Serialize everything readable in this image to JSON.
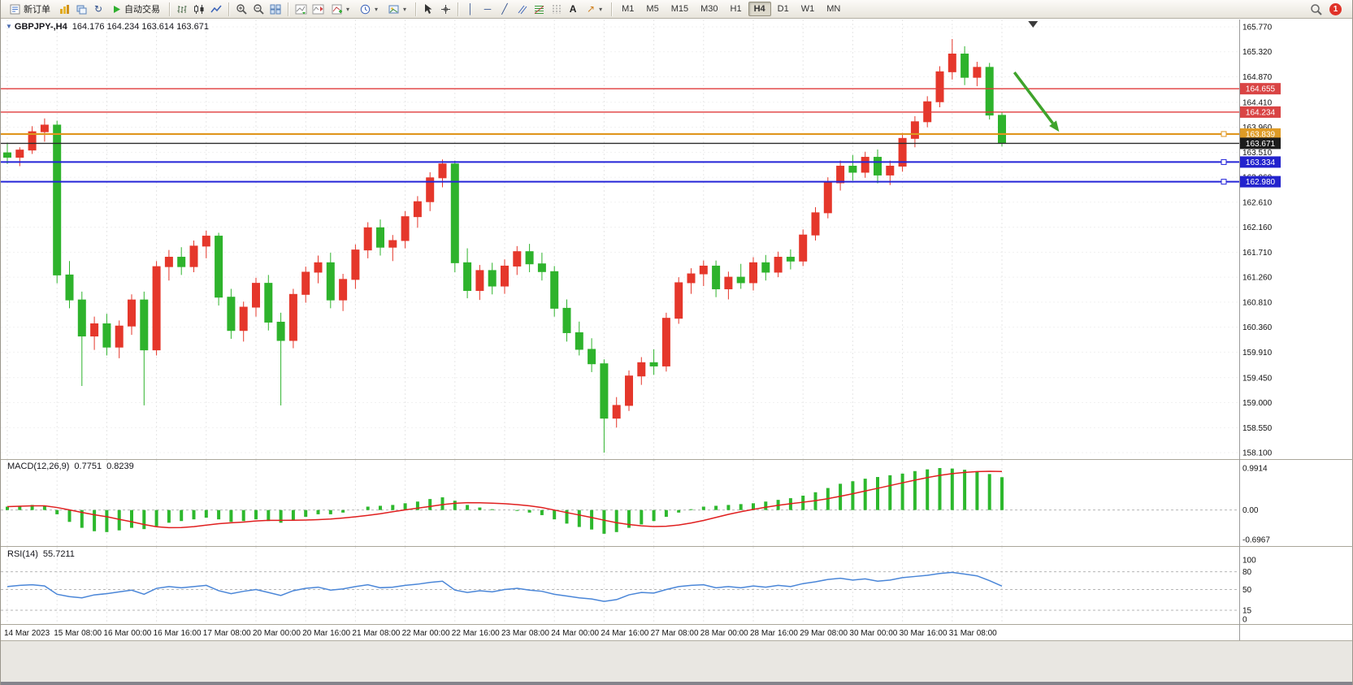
{
  "toolbar": {
    "new_order_label": "新订单",
    "autotrading_label": "自动交易",
    "timeframes": [
      "M1",
      "M5",
      "M15",
      "M30",
      "H1",
      "H4",
      "D1",
      "W1",
      "MN"
    ],
    "active_timeframe": "H4",
    "notification_count": "1",
    "text_tool_label": "A",
    "trendline_glyph": "╱",
    "vline_glyph": "│",
    "hline_glyph": "─",
    "arrows_glyph": "↗",
    "refresh_glyph": "↻"
  },
  "chart_header": {
    "symbol_label": "GBPJPY-,H4",
    "ohlc_text": "164.176 164.234 163.614 163.671"
  },
  "panels": {
    "macd_title": "MACD(12,26,9)",
    "macd_main": "0.7751",
    "macd_signal": "0.8239",
    "rsi_title": "RSI(14)",
    "rsi_value": "55.7211"
  },
  "chart_data": {
    "type": "candlestick",
    "symbol": "GBPJPY-",
    "timeframe": "H4",
    "current_candle": {
      "open": 164.176,
      "high": 164.234,
      "low": 163.614,
      "close": 163.671
    },
    "up_color": "#e5372b",
    "down_color": "#2eb32c",
    "grid_color": "#e6e6e6",
    "price_axis": {
      "min": 158.1,
      "max": 165.77,
      "tick_labels": [
        "165.770",
        "165.320",
        "164.870",
        "164.410",
        "163.960",
        "163.510",
        "163.060",
        "162.610",
        "162.160",
        "161.710",
        "161.260",
        "160.810",
        "160.360",
        "159.910",
        "159.450",
        "159.000",
        "158.550",
        "158.100"
      ]
    },
    "h_lines": [
      {
        "price": 164.655,
        "label": "164.655",
        "color": "#e03b3b",
        "width": 1.4,
        "badge": "#d94444",
        "handle": false
      },
      {
        "price": 164.234,
        "label": "164.234",
        "color": "#e03b3b",
        "width": 1.4,
        "badge": "#d94444",
        "handle": false
      },
      {
        "price": 163.839,
        "label": "163.839",
        "color": "#e0961e",
        "width": 2.2,
        "badge": "#df9b26",
        "handle": true
      },
      {
        "price": 163.671,
        "label": "163.671",
        "color": "#2b2b2b",
        "width": 1.4,
        "badge": "#1c1c1c",
        "handle": false
      },
      {
        "price": 163.334,
        "label": "163.334",
        "color": "#2424d8",
        "width": 2,
        "badge": "#2323cd",
        "handle": true
      },
      {
        "price": 162.98,
        "label": "162.980",
        "color": "#2424d8",
        "width": 2,
        "badge": "#2323cd",
        "handle": true
      }
    ],
    "candles": [
      [
        163.5,
        163.68,
        163.3,
        163.42
      ],
      [
        163.42,
        163.6,
        163.26,
        163.55
      ],
      [
        163.55,
        163.98,
        163.48,
        163.88
      ],
      [
        163.88,
        164.12,
        163.7,
        164.0
      ],
      [
        164.0,
        164.08,
        161.15,
        161.3
      ],
      [
        161.3,
        161.55,
        160.7,
        160.85
      ],
      [
        160.85,
        161.0,
        159.3,
        160.2
      ],
      [
        160.2,
        160.55,
        159.95,
        160.42
      ],
      [
        160.42,
        160.6,
        159.85,
        160.0
      ],
      [
        160.0,
        160.48,
        159.8,
        160.38
      ],
      [
        160.38,
        160.95,
        160.22,
        160.85
      ],
      [
        160.85,
        161.0,
        158.95,
        159.95
      ],
      [
        159.95,
        161.55,
        159.85,
        161.45
      ],
      [
        161.45,
        161.75,
        161.2,
        161.62
      ],
      [
        161.62,
        161.8,
        161.3,
        161.45
      ],
      [
        161.45,
        161.92,
        161.35,
        161.82
      ],
      [
        161.82,
        162.1,
        161.6,
        162.0
      ],
      [
        162.0,
        162.06,
        160.75,
        160.9
      ],
      [
        160.9,
        161.05,
        160.15,
        160.3
      ],
      [
        160.3,
        160.82,
        160.1,
        160.72
      ],
      [
        160.72,
        161.25,
        160.55,
        161.15
      ],
      [
        161.15,
        161.3,
        160.3,
        160.45
      ],
      [
        160.45,
        160.62,
        158.95,
        160.12
      ],
      [
        160.12,
        161.05,
        159.98,
        160.95
      ],
      [
        160.95,
        161.45,
        160.8,
        161.35
      ],
      [
        161.35,
        161.65,
        161.15,
        161.52
      ],
      [
        161.52,
        161.7,
        160.7,
        160.85
      ],
      [
        160.85,
        161.32,
        160.65,
        161.22
      ],
      [
        161.22,
        161.85,
        161.05,
        161.75
      ],
      [
        161.75,
        162.25,
        161.6,
        162.15
      ],
      [
        162.15,
        162.3,
        161.65,
        161.8
      ],
      [
        161.8,
        162.02,
        161.55,
        161.92
      ],
      [
        161.92,
        162.45,
        161.78,
        162.35
      ],
      [
        162.35,
        162.72,
        162.15,
        162.62
      ],
      [
        162.62,
        163.15,
        162.45,
        163.05
      ],
      [
        163.05,
        163.38,
        162.88,
        163.3
      ],
      [
        163.3,
        163.36,
        161.35,
        161.52
      ],
      [
        161.52,
        161.78,
        160.88,
        161.02
      ],
      [
        161.02,
        161.48,
        160.85,
        161.38
      ],
      [
        161.38,
        161.52,
        160.95,
        161.1
      ],
      [
        161.1,
        161.58,
        160.96,
        161.46
      ],
      [
        161.46,
        161.82,
        161.3,
        161.72
      ],
      [
        161.72,
        161.86,
        161.35,
        161.5
      ],
      [
        161.5,
        161.7,
        161.2,
        161.36
      ],
      [
        161.36,
        161.46,
        160.55,
        160.7
      ],
      [
        160.7,
        160.86,
        160.1,
        160.26
      ],
      [
        160.26,
        160.46,
        159.85,
        159.96
      ],
      [
        159.96,
        160.16,
        159.55,
        159.7
      ],
      [
        159.7,
        159.78,
        158.1,
        158.72
      ],
      [
        158.72,
        159.1,
        158.55,
        158.95
      ],
      [
        158.95,
        159.58,
        158.85,
        159.48
      ],
      [
        159.48,
        159.82,
        159.32,
        159.72
      ],
      [
        159.72,
        159.96,
        159.5,
        159.66
      ],
      [
        159.66,
        160.62,
        159.56,
        160.52
      ],
      [
        160.52,
        161.26,
        160.42,
        161.16
      ],
      [
        161.16,
        161.42,
        160.96,
        161.32
      ],
      [
        161.32,
        161.56,
        161.1,
        161.46
      ],
      [
        161.46,
        161.56,
        160.9,
        161.05
      ],
      [
        161.05,
        161.36,
        160.86,
        161.26
      ],
      [
        161.26,
        161.5,
        161.05,
        161.16
      ],
      [
        161.16,
        161.62,
        161.02,
        161.52
      ],
      [
        161.52,
        161.66,
        161.2,
        161.35
      ],
      [
        161.35,
        161.72,
        161.26,
        161.62
      ],
      [
        161.62,
        161.76,
        161.4,
        161.55
      ],
      [
        161.55,
        162.12,
        161.46,
        162.02
      ],
      [
        162.02,
        162.52,
        161.92,
        162.42
      ],
      [
        162.42,
        163.06,
        162.32,
        162.96
      ],
      [
        162.96,
        163.36,
        162.82,
        163.26
      ],
      [
        163.26,
        163.46,
        163.0,
        163.15
      ],
      [
        163.15,
        163.52,
        163.05,
        163.42
      ],
      [
        163.42,
        163.56,
        162.95,
        163.1
      ],
      [
        163.1,
        163.36,
        162.92,
        163.26
      ],
      [
        163.26,
        163.86,
        163.16,
        163.76
      ],
      [
        163.76,
        164.16,
        163.6,
        164.06
      ],
      [
        164.06,
        164.52,
        163.96,
        164.42
      ],
      [
        164.42,
        165.06,
        164.32,
        164.96
      ],
      [
        164.96,
        165.55,
        164.82,
        165.28
      ],
      [
        165.28,
        165.42,
        164.72,
        164.86
      ],
      [
        164.86,
        165.14,
        164.7,
        165.04
      ],
      [
        165.04,
        165.12,
        164.1,
        164.18
      ],
      [
        164.176,
        164.234,
        163.614,
        163.671
      ]
    ],
    "date_labels": [
      "14 Mar 2023",
      "15 Mar 08:00",
      "16 Mar 00:00",
      "16 Mar 16:00",
      "17 Mar 08:00",
      "20 Mar 00:00",
      "20 Mar 16:00",
      "21 Mar 08:00",
      "22 Mar 00:00",
      "22 Mar 16:00",
      "23 Mar 08:00",
      "24 Mar 00:00",
      "24 Mar 16:00",
      "27 Mar 08:00",
      "28 Mar 00:00",
      "28 Mar 16:00",
      "29 Mar 08:00",
      "30 Mar 00:00",
      "30 Mar 16:00",
      "31 Mar 08:00"
    ],
    "label_every": 4,
    "macd": {
      "title": "MACD(12,26,9)",
      "main_value": 0.7751,
      "signal_value": 0.8239,
      "max": 0.9914,
      "min": -0.6967,
      "axis_labels": [
        "0.9914",
        "0.00",
        "-0.6967"
      ],
      "histogram_color": "#2db82d",
      "signal_color": "#e01f1f",
      "histogram": [
        0.08,
        0.1,
        0.12,
        0.1,
        -0.1,
        -0.28,
        -0.42,
        -0.5,
        -0.52,
        -0.48,
        -0.42,
        -0.45,
        -0.38,
        -0.3,
        -0.26,
        -0.22,
        -0.18,
        -0.22,
        -0.28,
        -0.26,
        -0.22,
        -0.26,
        -0.3,
        -0.24,
        -0.16,
        -0.1,
        -0.1,
        -0.06,
        0.0,
        0.08,
        0.1,
        0.12,
        0.16,
        0.2,
        0.26,
        0.3,
        0.22,
        0.12,
        0.06,
        0.02,
        0.0,
        -0.02,
        -0.06,
        -0.12,
        -0.22,
        -0.32,
        -0.4,
        -0.46,
        -0.56,
        -0.52,
        -0.42,
        -0.34,
        -0.26,
        -0.16,
        -0.06,
        0.02,
        0.08,
        0.1,
        0.12,
        0.14,
        0.16,
        0.2,
        0.24,
        0.28,
        0.34,
        0.42,
        0.52,
        0.62,
        0.68,
        0.74,
        0.78,
        0.82,
        0.86,
        0.92,
        0.96,
        0.9914,
        0.98,
        0.95,
        0.9,
        0.85,
        0.7751
      ]
    },
    "rsi": {
      "title": "RSI(14)",
      "value": 55.7211,
      "range": [
        0,
        100
      ],
      "levels": [
        80,
        50,
        15
      ],
      "axis_labels": [
        "100",
        "80",
        "50",
        "15",
        "0"
      ],
      "line_color": "#4a86d8",
      "values": [
        55,
        57,
        58,
        56,
        42,
        38,
        36,
        41,
        43,
        46,
        49,
        42,
        52,
        55,
        53,
        55,
        57,
        48,
        43,
        47,
        50,
        45,
        40,
        48,
        52,
        54,
        49,
        51,
        55,
        58,
        53,
        54,
        57,
        59,
        62,
        64,
        49,
        45,
        48,
        46,
        50,
        52,
        49,
        47,
        42,
        39,
        36,
        34,
        30,
        33,
        41,
        45,
        44,
        50,
        55,
        57,
        58,
        53,
        55,
        53,
        56,
        54,
        57,
        55,
        60,
        63,
        67,
        69,
        66,
        68,
        64,
        66,
        70,
        72,
        74,
        77,
        79,
        76,
        73,
        65,
        55.72
      ]
    },
    "annotation_arrow": {
      "color": "#3fa32b",
      "from": {
        "bar": 81,
        "price": 164.95
      },
      "to": {
        "bar": 84.6,
        "price": 163.88
      }
    },
    "shift_marker_bar": 82.5
  }
}
